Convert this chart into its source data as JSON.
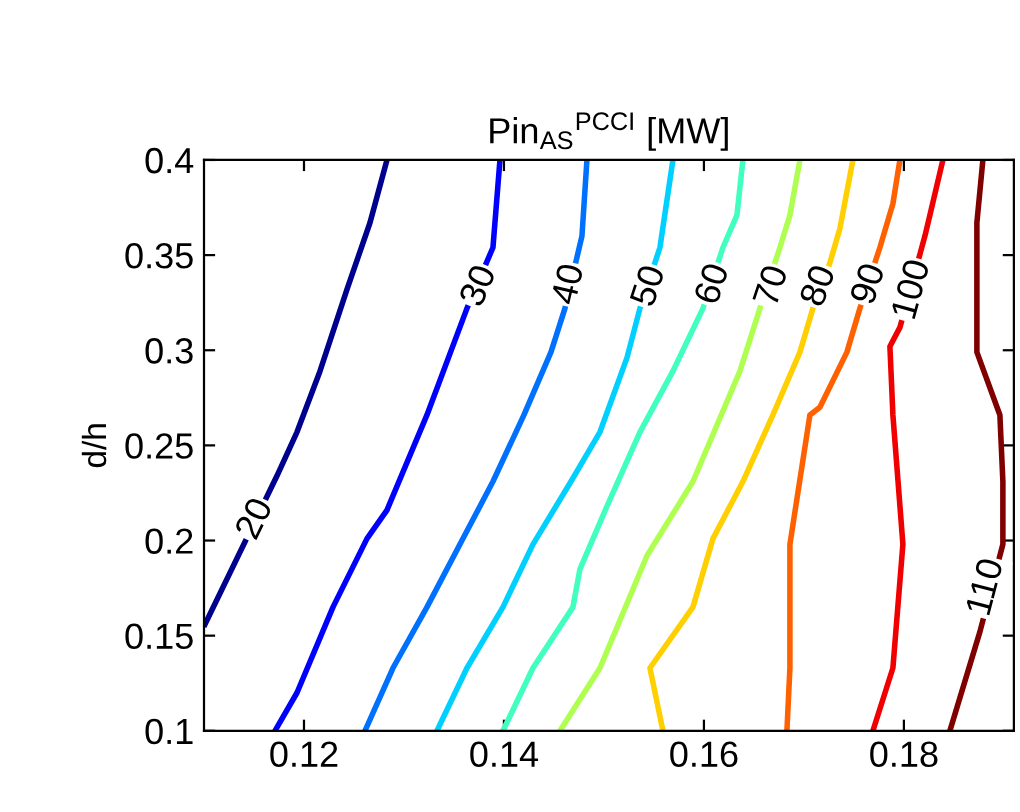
{
  "chart_data": {
    "type": "line",
    "title": "Pin$_{AS}$$^{PCCI}$ [MW]",
    "ylabel": "d/h",
    "xlim": [
      0.11,
      0.191
    ],
    "ylim": [
      0.1,
      0.4
    ],
    "xticks": [
      0.12,
      0.14,
      0.16,
      0.18
    ],
    "yticks": [
      0.1,
      0.15,
      0.2,
      0.25,
      0.3,
      0.35,
      0.4
    ],
    "grid": false,
    "legend": false,
    "marker": "none",
    "line_style": "solid",
    "series": [
      {
        "color": "#00008f",
        "x": [
          0.1101,
          0.1173,
          0.1193,
          0.1216,
          0.1243,
          0.1266,
          0.1283
        ],
        "values": [
          0.156,
          0.234,
          0.257,
          0.289,
          0.332,
          0.367,
          0.4
        ]
      },
      {
        "color": "#0000ff",
        "x": [
          0.1171,
          0.1193,
          0.1229,
          0.1263,
          0.1283,
          0.1323,
          0.1363,
          0.1389,
          0.1396
        ],
        "values": [
          0.1,
          0.12,
          0.165,
          0.201,
          0.216,
          0.266,
          0.322,
          0.354,
          0.4
        ]
      },
      {
        "color": "#0070ff",
        "x": [
          0.1261,
          0.1289,
          0.1323,
          0.1356,
          0.1389,
          0.142,
          0.1447,
          0.1461,
          0.1478,
          0.1483
        ],
        "values": [
          0.1,
          0.133,
          0.165,
          0.198,
          0.231,
          0.266,
          0.299,
          0.322,
          0.36,
          0.4
        ]
      },
      {
        "color": "#00d0ff",
        "x": [
          0.1333,
          0.1363,
          0.1399,
          0.1429,
          0.1467,
          0.1496,
          0.1523,
          0.1536,
          0.1556,
          0.1569
        ],
        "values": [
          0.1,
          0.133,
          0.165,
          0.198,
          0.231,
          0.257,
          0.296,
          0.322,
          0.354,
          0.4
        ]
      },
      {
        "color": "#40ffbf",
        "x": [
          0.1399,
          0.1429,
          0.1469,
          0.1476,
          0.1503,
          0.1536,
          0.1569,
          0.1599,
          0.1619,
          0.1633,
          0.1639
        ],
        "values": [
          0.1,
          0.133,
          0.165,
          0.185,
          0.218,
          0.257,
          0.289,
          0.322,
          0.354,
          0.371,
          0.4
        ]
      },
      {
        "color": "#afff50",
        "x": [
          0.1456,
          0.1496,
          0.1543,
          0.1589,
          0.1636,
          0.1656,
          0.1676,
          0.1686,
          0.1696
        ],
        "values": [
          0.1,
          0.133,
          0.192,
          0.231,
          0.289,
          0.322,
          0.354,
          0.371,
          0.4
        ]
      },
      {
        "color": "#ffcf00",
        "x": [
          0.1559,
          0.1546,
          0.1589,
          0.1609,
          0.1639,
          0.1669,
          0.1696,
          0.1709,
          0.1726,
          0.1736,
          0.1749
        ],
        "values": [
          0.1,
          0.133,
          0.165,
          0.201,
          0.231,
          0.266,
          0.299,
          0.322,
          0.346,
          0.364,
          0.4
        ]
      },
      {
        "color": "#ff6000",
        "x": [
          0.1683,
          0.1686,
          0.1686,
          0.1706,
          0.1716,
          0.1743,
          0.1756,
          0.1776,
          0.1789,
          0.1796
        ],
        "values": [
          0.1,
          0.133,
          0.198,
          0.266,
          0.27,
          0.299,
          0.322,
          0.354,
          0.377,
          0.4
        ]
      },
      {
        "color": "#f00000",
        "x": [
          0.1769,
          0.1789,
          0.1799,
          0.1789,
          0.1786,
          0.1796,
          0.1821,
          0.1826,
          0.1839
        ],
        "values": [
          0.1,
          0.133,
          0.198,
          0.266,
          0.302,
          0.312,
          0.36,
          0.371,
          0.4
        ]
      },
      {
        "color": "#800000",
        "x": [
          0.1846,
          0.1876,
          0.1899,
          0.1899,
          0.1896,
          0.1873,
          0.1873,
          0.1879
        ],
        "values": [
          0.1,
          0.152,
          0.198,
          0.231,
          0.266,
          0.299,
          0.367,
          0.4
        ]
      }
    ],
    "annotations": [
      {
        "text": "20",
        "x": 0.1152,
        "y": 0.211
      },
      {
        "text": "30",
        "x": 0.1376,
        "y": 0.3335
      },
      {
        "text": "40",
        "x": 0.1466,
        "y": 0.3345
      },
      {
        "text": "50",
        "x": 0.1546,
        "y": 0.3335
      },
      {
        "text": "60",
        "x": 0.161,
        "y": 0.3345
      },
      {
        "text": "70",
        "x": 0.1669,
        "y": 0.3335
      },
      {
        "text": "80",
        "x": 0.1716,
        "y": 0.3335
      },
      {
        "text": "90",
        "x": 0.1766,
        "y": 0.3345
      },
      {
        "text": "100",
        "x": 0.1809,
        "y": 0.3316
      },
      {
        "text": "110",
        "x": 0.1883,
        "y": 0.1752
      }
    ]
  }
}
